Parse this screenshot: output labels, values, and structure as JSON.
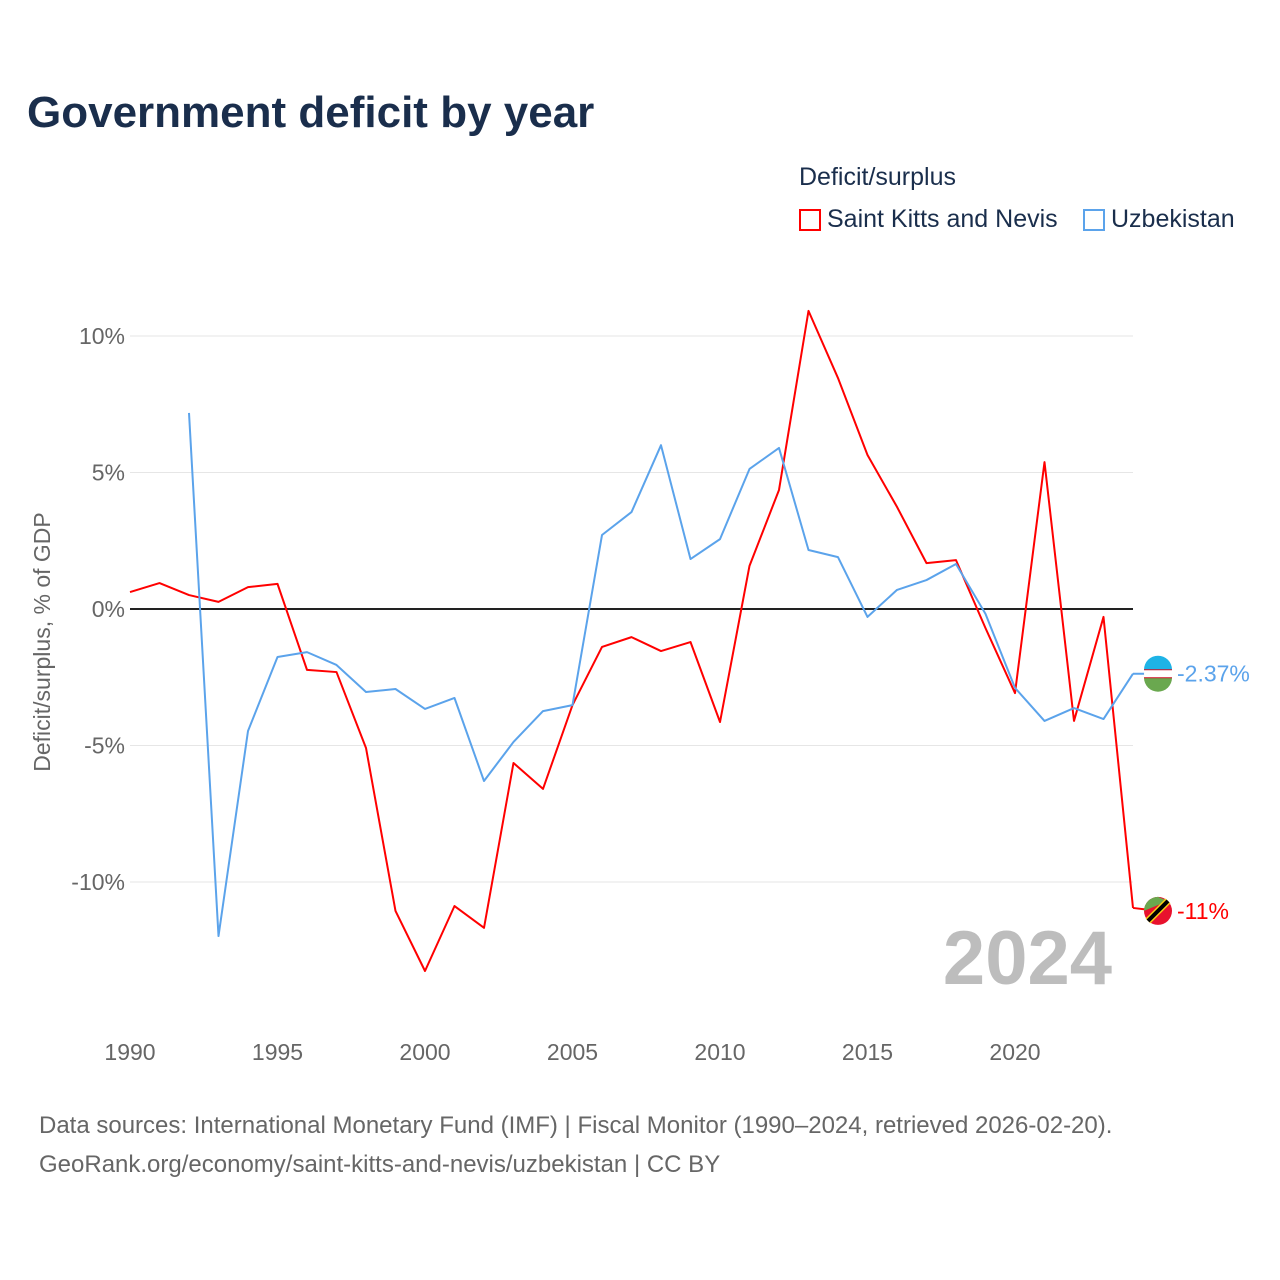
{
  "title": "Government deficit by year",
  "legend": {
    "title": "Deficit/surplus",
    "items": [
      {
        "label": "Saint Kitts and Nevis",
        "color": "#ff0000"
      },
      {
        "label": "Uzbekistan",
        "color": "#5ba3eb"
      }
    ]
  },
  "source": {
    "line1": "Data sources: International Monetary Fund (IMF) | Fiscal Monitor (1990–2024, retrieved 2026-02-20).",
    "line2": "GeoRank.org/economy/saint-kitts-and-nevis/uzbekistan | CC BY"
  },
  "chart_data": {
    "type": "line",
    "title": "Government deficit by year",
    "ylabel": "Deficit/surplus, % of GDP",
    "xlabel": "",
    "xlim": [
      1990,
      2024
    ],
    "ylim": [
      -13.5,
      11
    ],
    "xticks": [
      1990,
      1995,
      2000,
      2005,
      2010,
      2015,
      2020
    ],
    "xtick_labels": [
      "1990",
      "1995",
      "2000",
      "2005",
      "2010",
      "2015",
      "2020"
    ],
    "yticks": [
      10,
      5,
      0,
      -5,
      -10
    ],
    "ytick_labels": [
      "10%",
      "5%",
      "0%",
      "-5%",
      "-10%"
    ],
    "watermark_year": "2024",
    "series": [
      {
        "name": "Saint Kitts and Nevis",
        "color": "#ff0000",
        "end_label": "-11%",
        "start": 1990,
        "values": [
          0.62,
          0.95,
          0.51,
          0.26,
          0.8,
          0.92,
          -2.23,
          -2.31,
          -5.09,
          -11.06,
          -13.26,
          -10.88,
          -11.68,
          -5.64,
          -6.59,
          -3.52,
          -1.39,
          -1.03,
          -1.54,
          -1.21,
          -4.14,
          1.58,
          4.36,
          10.92,
          8.46,
          5.64,
          3.74,
          1.68,
          1.79,
          -0.7,
          -3.08,
          5.38,
          -4.1,
          -0.29,
          -10.95
        ]
      },
      {
        "name": "Uzbekistan",
        "color": "#5ba3eb",
        "end_label": "-2.37%",
        "start": 1992,
        "values": [
          7.18,
          -11.98,
          -4.47,
          -1.76,
          -1.58,
          -2.05,
          -3.04,
          -2.93,
          -3.66,
          -3.26,
          -6.3,
          -4.87,
          -3.74,
          -3.52,
          2.71,
          3.55,
          6.0,
          1.83,
          2.56,
          5.13,
          5.9,
          2.16,
          1.9,
          -0.29,
          0.7,
          1.06,
          1.65,
          -0.18,
          -2.89,
          -4.1,
          -3.63,
          -4.03,
          -2.37
        ]
      }
    ]
  }
}
